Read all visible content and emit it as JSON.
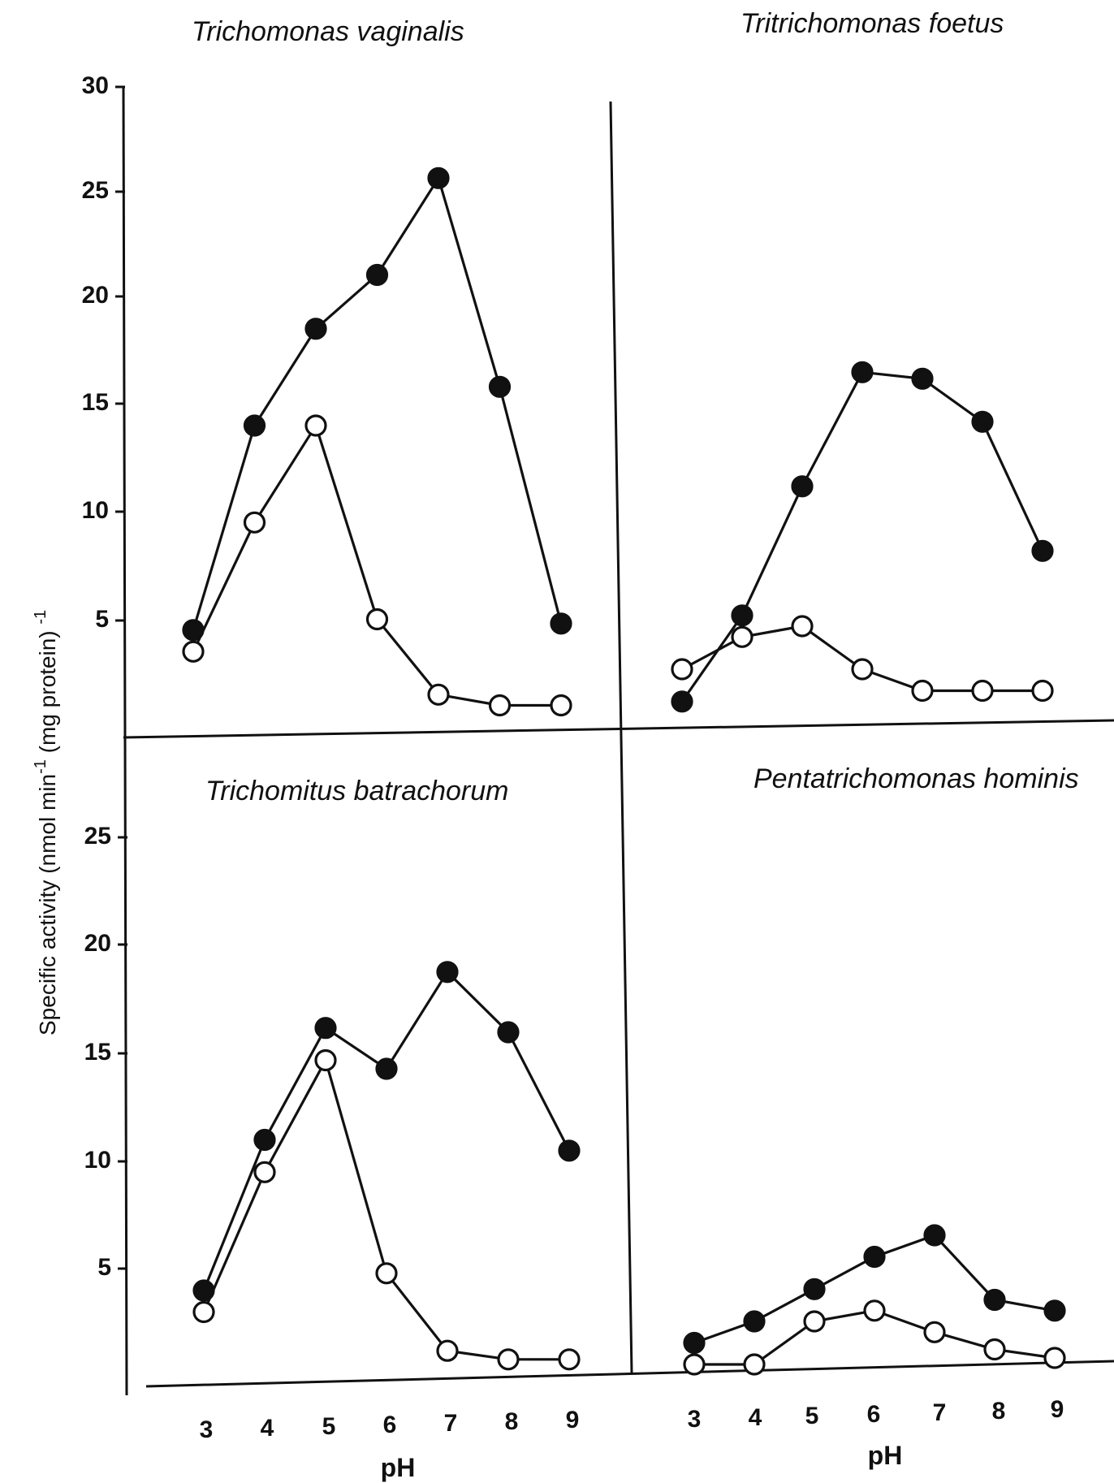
{
  "chart_data": {
    "type": "line",
    "ylabel": "Specific activity (nmol min",
    "ylabel_sup1": "-1",
    "ylabel_mid": " (mg protein) ",
    "ylabel_sup2": "-1",
    "xlabel": "pH",
    "x": [
      3,
      4,
      5,
      6,
      7,
      8,
      9
    ],
    "x_tick_labels": [
      "3",
      "4",
      "5",
      "6",
      "7",
      "8",
      "9"
    ],
    "y_tick_labels_top": [
      "30",
      "25",
      "20",
      "15",
      "10",
      "5"
    ],
    "y_tick_labels_bottom": [
      "25",
      "20",
      "15",
      "10",
      "5"
    ],
    "ylim": [
      0,
      30
    ],
    "marker_styles": [
      "filled circle",
      "open circle"
    ],
    "panels": [
      {
        "title": "Trichomonas vaginalis",
        "series": [
          {
            "marker": "filled",
            "values": [
              4.5,
              14.0,
              18.5,
              21.0,
              25.5,
              15.8,
              4.8
            ]
          },
          {
            "marker": "open",
            "values": [
              3.5,
              9.5,
              14.0,
              5.0,
              1.5,
              1.0,
              1.0
            ]
          }
        ]
      },
      {
        "title": "Tritrichomonas foetus",
        "series": [
          {
            "marker": "filled",
            "values": [
              0.5,
              4.5,
              10.5,
              15.8,
              15.5,
              13.5,
              7.5
            ]
          },
          {
            "marker": "open",
            "values": [
              2.0,
              3.5,
              4.0,
              2.0,
              1.0,
              1.0,
              1.0
            ]
          }
        ]
      },
      {
        "title": "Trichomitus batrachorum",
        "series": [
          {
            "marker": "filled",
            "values": [
              4.0,
              11.0,
              16.2,
              14.3,
              18.8,
              16.0,
              10.5
            ]
          },
          {
            "marker": "open",
            "values": [
              3.0,
              9.5,
              14.7,
              4.8,
              1.2,
              0.8,
              0.8
            ]
          }
        ]
      },
      {
        "title": "Pentatrichomonas hominis",
        "series": [
          {
            "marker": "filled",
            "values": [
              1.0,
              2.0,
              3.5,
              5.0,
              6.0,
              3.0,
              2.5
            ]
          },
          {
            "marker": "open",
            "values": [
              0.0,
              0.0,
              2.0,
              2.5,
              1.5,
              0.7,
              0.3
            ]
          }
        ]
      }
    ]
  }
}
